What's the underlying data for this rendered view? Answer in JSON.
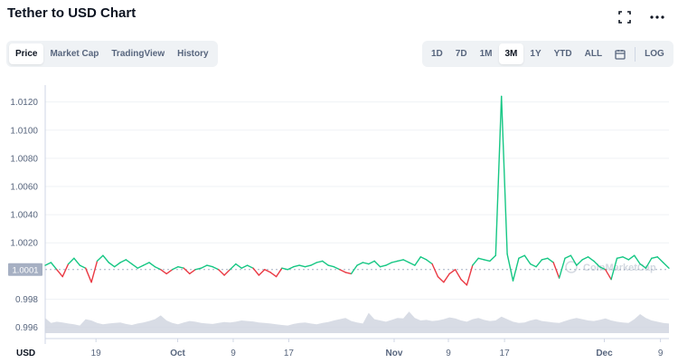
{
  "header": {
    "title": "Tether to USD Chart",
    "fullscreen_icon": "expand-icon",
    "more_icon": "more-dots-icon"
  },
  "type_tabs": [
    {
      "label": "Price",
      "active": true
    },
    {
      "label": "Market Cap",
      "active": false
    },
    {
      "label": "TradingView",
      "active": false
    },
    {
      "label": "History",
      "active": false
    }
  ],
  "range_tabs": [
    {
      "label": "1D",
      "active": false
    },
    {
      "label": "7D",
      "active": false
    },
    {
      "label": "1M",
      "active": false
    },
    {
      "label": "3M",
      "active": true
    },
    {
      "label": "1Y",
      "active": false
    },
    {
      "label": "YTD",
      "active": false
    },
    {
      "label": "ALL",
      "active": false
    }
  ],
  "calendar_icon": "calendar-icon",
  "log_label": "LOG",
  "colors": {
    "up": "#16c784",
    "down": "#ea3943",
    "volume": "#d1d6e0",
    "grid": "#eff2f5",
    "axis_text": "#58667e",
    "price_tag_bg": "#a6b0c3"
  },
  "chart_data": {
    "type": "line",
    "title": "Tether to USD Chart",
    "y_ticks": [
      "1.0120",
      "1.0100",
      "1.0080",
      "1.0060",
      "1.0040",
      "1.0020",
      "0.998",
      "0.996"
    ],
    "current_price_label": "1.0001",
    "x_ticks": [
      "19",
      "Oct",
      "9",
      "17",
      "Nov",
      "9",
      "17",
      "Dec",
      "9"
    ],
    "currency_label": "USD",
    "watermark": "CoinMarketCap",
    "baseline": 1.0001,
    "series": [
      {
        "values": [
          1.0004,
          1.0006,
          1.0001,
          0.9996,
          1.0005,
          1.0009,
          1.0004,
          1.0002,
          0.9992,
          1.0007,
          1.0011,
          1.0006,
          1.0003,
          1.0006,
          1.0008,
          1.0005,
          1.0002,
          1.0004,
          1.0006,
          1.0003,
          1.0001,
          0.9998,
          1.0001,
          1.0003,
          1.0002,
          0.9998,
          1.0001,
          1.0002,
          1.0004,
          1.0003,
          1.0001,
          0.9997,
          1.0001,
          1.0005,
          1.0002,
          1.0004,
          1.0002,
          0.9997,
          1.0001,
          0.9999,
          0.9996,
          1.0002,
          1.0001,
          1.0003,
          1.0004,
          1.0003,
          1.0004,
          1.0006,
          1.0007,
          1.0004,
          1.0003,
          1.0001,
          0.9999,
          0.9998,
          1.0004,
          1.0006,
          1.0005,
          1.0007,
          1.0003,
          1.0004,
          1.0006,
          1.0007,
          1.0008,
          1.0006,
          1.0004,
          1.001,
          1.0008,
          1.0005,
          0.9996,
          0.9992,
          0.9998,
          1.0001,
          0.9994,
          0.999,
          1.0004,
          1.0009,
          1.0008,
          1.0007,
          1.0011,
          1.0124,
          1.0012,
          0.9993,
          1.0009,
          1.0011,
          1.0005,
          1.0003,
          1.0008,
          1.0009,
          1.0006,
          0.9995,
          1.0009,
          1.0011,
          1.0004,
          1.0008,
          1.001,
          1.0007,
          1.0003,
          1.0001,
          0.9994,
          1.0009,
          1.001,
          1.0008,
          1.0011,
          1.0005,
          1.0002,
          1.0009,
          1.001,
          1.0006,
          1.0002
        ]
      }
    ],
    "volume": [
      0.6,
      0.4,
      0.45,
      0.42,
      0.38,
      0.35,
      0.3,
      0.55,
      0.5,
      0.4,
      0.35,
      0.38,
      0.4,
      0.42,
      0.36,
      0.32,
      0.38,
      0.42,
      0.48,
      0.55,
      0.7,
      0.5,
      0.4,
      0.35,
      0.42,
      0.48,
      0.45,
      0.4,
      0.38,
      0.36,
      0.4,
      0.44,
      0.42,
      0.45,
      0.5,
      0.48,
      0.46,
      0.42,
      0.4,
      0.38,
      0.35,
      0.32,
      0.3,
      0.36,
      0.4,
      0.42,
      0.38,
      0.35,
      0.4,
      0.44,
      0.5,
      0.55,
      0.6,
      0.48,
      0.42,
      0.38,
      0.8,
      0.55,
      0.5,
      0.45,
      0.52,
      0.6,
      0.58,
      0.85,
      0.6,
      0.5,
      0.52,
      0.48,
      0.5,
      0.55,
      0.62,
      0.58,
      0.5,
      0.45,
      0.55,
      0.6,
      0.52,
      0.48,
      0.5,
      0.65,
      0.55,
      0.45,
      0.4,
      0.42,
      0.5,
      0.55,
      0.48,
      0.45,
      0.42,
      0.4,
      0.48,
      0.55,
      0.6,
      0.55,
      0.5,
      0.48,
      0.52,
      0.58,
      0.5,
      0.45,
      0.42,
      0.4,
      0.55,
      0.75,
      0.6,
      0.5,
      0.45,
      0.4,
      0.38
    ],
    "y_range": [
      0.9952,
      1.0132
    ]
  }
}
